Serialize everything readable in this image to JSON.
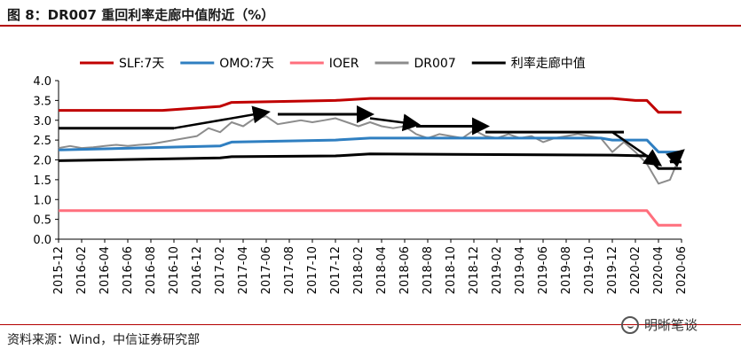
{
  "header": {
    "title": "图 8：DR007 重回利率走廊中值附近（%）"
  },
  "footer": {
    "source": "资料来源：Wind，中信证券研究部",
    "watermark": "明晰笔谈"
  },
  "chart_data": {
    "type": "line",
    "title": "",
    "xlabel": "",
    "ylabel": "",
    "ylim": [
      0,
      4
    ],
    "yticks": [
      "4.0",
      "3.5",
      "3.0",
      "2.5",
      "2.0",
      "1.5",
      "1.0",
      "0.5",
      "0.0"
    ],
    "x_ticks": [
      "2015-12",
      "2016-02",
      "2016-04",
      "2016-06",
      "2016-08",
      "2016-10",
      "2016-12",
      "2017-02",
      "2017-04",
      "2017-06",
      "2017-08",
      "2017-10",
      "2017-12",
      "2018-02",
      "2018-04",
      "2018-06",
      "2018-08",
      "2018-10",
      "2018-12",
      "2019-02",
      "2019-04",
      "2019-06",
      "2019-08",
      "2019-10",
      "2019-12",
      "2020-02",
      "2020-04",
      "2020-06"
    ],
    "legend_position": "top",
    "series": [
      {
        "name": "SLF:7天",
        "color": "#c00000",
        "width": 3,
        "points": [
          [
            "2015-12",
            3.25
          ],
          [
            "2016-09",
            3.25
          ],
          [
            "2017-02",
            3.35
          ],
          [
            "2017-03",
            3.45
          ],
          [
            "2017-12",
            3.5
          ],
          [
            "2018-03",
            3.55
          ],
          [
            "2019-12",
            3.55
          ],
          [
            "2020-02",
            3.5
          ],
          [
            "2020-03",
            3.5
          ],
          [
            "2020-04",
            3.2
          ],
          [
            "2020-06",
            3.2
          ]
        ]
      },
      {
        "name": "OMO:7天",
        "color": "#2f7fc1",
        "width": 3,
        "points": [
          [
            "2015-12",
            2.25
          ],
          [
            "2017-02",
            2.35
          ],
          [
            "2017-03",
            2.45
          ],
          [
            "2017-12",
            2.5
          ],
          [
            "2018-03",
            2.55
          ],
          [
            "2019-11",
            2.55
          ],
          [
            "2019-12",
            2.5
          ],
          [
            "2020-03",
            2.5
          ],
          [
            "2020-04",
            2.2
          ],
          [
            "2020-06",
            2.2
          ]
        ]
      },
      {
        "name": "IOER",
        "color": "#ff6f7d",
        "width": 3,
        "points": [
          [
            "2015-12",
            0.72
          ],
          [
            "2020-03",
            0.72
          ],
          [
            "2020-04",
            0.35
          ],
          [
            "2020-06",
            0.35
          ]
        ]
      },
      {
        "name": "DR007",
        "color": "#8c8c8c",
        "width": 2,
        "points": [
          [
            "2015-12",
            2.3
          ],
          [
            "2016-01",
            2.35
          ],
          [
            "2016-02",
            2.3
          ],
          [
            "2016-03",
            2.32
          ],
          [
            "2016-04",
            2.35
          ],
          [
            "2016-05",
            2.38
          ],
          [
            "2016-06",
            2.35
          ],
          [
            "2016-07",
            2.38
          ],
          [
            "2016-08",
            2.4
          ],
          [
            "2016-09",
            2.45
          ],
          [
            "2016-10",
            2.5
          ],
          [
            "2016-11",
            2.55
          ],
          [
            "2016-12",
            2.6
          ],
          [
            "2017-01",
            2.8
          ],
          [
            "2017-02",
            2.7
          ],
          [
            "2017-03",
            2.95
          ],
          [
            "2017-04",
            2.85
          ],
          [
            "2017-05",
            3.05
          ],
          [
            "2017-06",
            3.1
          ],
          [
            "2017-07",
            2.9
          ],
          [
            "2017-08",
            2.95
          ],
          [
            "2017-09",
            3.0
          ],
          [
            "2017-10",
            2.95
          ],
          [
            "2017-11",
            3.0
          ],
          [
            "2017-12",
            3.05
          ],
          [
            "2018-01",
            2.95
          ],
          [
            "2018-02",
            2.85
          ],
          [
            "2018-03",
            2.95
          ],
          [
            "2018-04",
            2.85
          ],
          [
            "2018-05",
            2.8
          ],
          [
            "2018-06",
            2.85
          ],
          [
            "2018-07",
            2.65
          ],
          [
            "2018-08",
            2.55
          ],
          [
            "2018-09",
            2.65
          ],
          [
            "2018-10",
            2.6
          ],
          [
            "2018-11",
            2.55
          ],
          [
            "2018-12",
            2.75
          ],
          [
            "2019-01",
            2.6
          ],
          [
            "2019-02",
            2.55
          ],
          [
            "2019-03",
            2.65
          ],
          [
            "2019-04",
            2.55
          ],
          [
            "2019-05",
            2.6
          ],
          [
            "2019-06",
            2.45
          ],
          [
            "2019-07",
            2.55
          ],
          [
            "2019-08",
            2.6
          ],
          [
            "2019-09",
            2.65
          ],
          [
            "2019-10",
            2.6
          ],
          [
            "2019-11",
            2.55
          ],
          [
            "2019-12",
            2.2
          ],
          [
            "2020-01",
            2.45
          ],
          [
            "2020-02",
            2.2
          ],
          [
            "2020-03",
            1.9
          ],
          [
            "2020-04",
            1.4
          ],
          [
            "2020-05",
            1.5
          ],
          [
            "2020-06",
            2.2
          ]
        ]
      },
      {
        "name": "利率走廊中值",
        "color": "#000000",
        "width": 3,
        "points": [
          [
            "2015-12",
            1.98
          ],
          [
            "2017-02",
            2.05
          ],
          [
            "2017-03",
            2.08
          ],
          [
            "2017-12",
            2.1
          ],
          [
            "2018-03",
            2.15
          ],
          [
            "2019-12",
            2.12
          ],
          [
            "2020-03",
            2.1
          ],
          [
            "2020-04",
            1.78
          ],
          [
            "2020-06",
            1.78
          ]
        ]
      }
    ],
    "annotations": {
      "description": "black trend arrows and horizontal reference segments",
      "segments": [
        [
          [
            "2015-12",
            2.8
          ],
          [
            "2016-10",
            2.8
          ]
        ],
        [
          [
            "2017-07",
            3.15
          ],
          [
            "2018-02",
            3.15
          ]
        ],
        [
          [
            "2018-07",
            2.85
          ],
          [
            "2019-01",
            2.85
          ]
        ],
        [
          [
            "2019-01",
            2.7
          ],
          [
            "2020-01",
            2.7
          ]
        ],
        [
          [
            "2020-05",
            1.95
          ],
          [
            "2020-06",
            1.95
          ]
        ]
      ],
      "arrows": [
        [
          [
            "2016-10",
            2.8
          ],
          [
            "2017-06",
            3.2
          ]
        ],
        [
          [
            "2017-12",
            3.15
          ],
          [
            "2018-03",
            3.15
          ]
        ],
        [
          [
            "2018-03",
            3.05
          ],
          [
            "2018-07",
            2.9
          ]
        ],
        [
          [
            "2018-07",
            2.85
          ],
          [
            "2019-01",
            2.85
          ]
        ],
        [
          [
            "2019-12",
            2.7
          ],
          [
            "2020-04",
            1.9
          ]
        ],
        [
          [
            "2020-05",
            1.95
          ],
          [
            "2020-06",
            2.2
          ]
        ]
      ]
    }
  }
}
